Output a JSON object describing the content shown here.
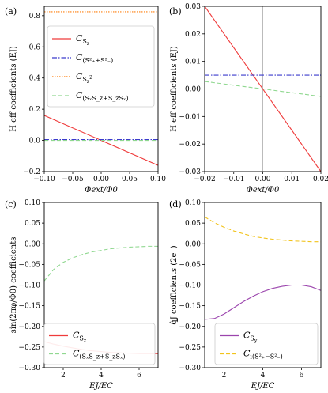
{
  "chart_data": [
    {
      "panel_label": "(a)",
      "type": "line",
      "xlabel": "Φext/Φ0",
      "ylabel": "H eff coefficients (EJ)",
      "xlim": [
        -0.1,
        0.1
      ],
      "ylim": [
        -0.2,
        0.86
      ],
      "xticks": [
        "−0.10",
        "−0.05",
        "0.00",
        "0.05",
        "0.10"
      ],
      "xtick_values": [
        -0.1,
        -0.05,
        0.0,
        0.05,
        0.1
      ],
      "yticks": [
        "−0.2",
        "0.0",
        "0.2",
        "0.4",
        "0.6",
        "0.8"
      ],
      "ytick_values": [
        -0.2,
        0.0,
        0.2,
        0.4,
        0.6,
        0.8
      ],
      "legend": "upper-left",
      "series": [
        {
          "name": "C_{Sz}",
          "color": "#ef3b3b",
          "dash": "solid",
          "x": [
            -0.1,
            0.1
          ],
          "y": [
            0.16,
            -0.16
          ]
        },
        {
          "name": "C_{(S+²+S−²)}",
          "color": "#3b3bcc",
          "dash": "dashdot",
          "x": [
            -0.1,
            0.1
          ],
          "y": [
            0.005,
            0.005
          ]
        },
        {
          "name": "C_{Sz²}",
          "color": "#ff7f0e",
          "dash": "dotted",
          "x": [
            -0.1,
            0.1
          ],
          "y": [
            0.825,
            0.825
          ]
        },
        {
          "name": "C_{(SxSz+SzSx)}",
          "color": "#90d890",
          "dash": "dashed",
          "x": [
            -0.1,
            0.1
          ],
          "y": [
            0.0,
            0.0
          ]
        }
      ]
    },
    {
      "panel_label": "(b)",
      "type": "line",
      "xlabel": "Φext/Φ0",
      "ylabel": "H eff coefficients (EJ)",
      "xlim": [
        -0.02,
        0.02
      ],
      "ylim": [
        -0.03,
        0.03
      ],
      "xticks": [
        "−0.02",
        "−0.01",
        "0.00",
        "0.01",
        "0.02"
      ],
      "xtick_values": [
        -0.02,
        -0.01,
        0.0,
        0.01,
        0.02
      ],
      "yticks": [
        "−0.03",
        "−0.02",
        "−0.01",
        "0.00",
        "0.01",
        "0.02",
        "0.03"
      ],
      "ytick_values": [
        -0.03,
        -0.02,
        -0.01,
        0.0,
        0.01,
        0.02,
        0.03
      ],
      "series": [
        {
          "name": "C_{Sz}",
          "color": "#ef3b3b",
          "dash": "solid",
          "x": [
            -0.02,
            0.02
          ],
          "y": [
            0.03,
            -0.03
          ]
        },
        {
          "name": "C_{(S+²+S−²)}",
          "color": "#3b3bcc",
          "dash": "dashdot",
          "x": [
            -0.02,
            0.02
          ],
          "y": [
            0.005,
            0.005
          ]
        },
        {
          "name": "C_{(SxSz+SzSx)}",
          "color": "#90d890",
          "dash": "dashed",
          "x": [
            -0.02,
            0.02
          ],
          "y": [
            0.0027,
            -0.0027
          ]
        }
      ]
    },
    {
      "panel_label": "(c)",
      "type": "line",
      "xlabel": "EJ/EC",
      "ylabel": "sin(2πφ/Φ0) coefficients",
      "xlim": [
        1,
        7
      ],
      "ylim": [
        -0.3,
        0.1
      ],
      "xticks": [
        "2",
        "4",
        "6"
      ],
      "xtick_values": [
        2,
        4,
        6
      ],
      "yticks": [
        "−0.30",
        "−0.25",
        "−0.20",
        "−0.15",
        "−0.10",
        "−0.05",
        "0.00",
        "0.05",
        "0.10"
      ],
      "ytick_values": [
        -0.3,
        -0.25,
        -0.2,
        -0.15,
        -0.1,
        -0.05,
        0.0,
        0.05,
        0.1
      ],
      "legend": "lower-right",
      "series": [
        {
          "name": "C_{Sz}",
          "color": "#ef3b3b",
          "dash": "solid",
          "x": [
            1,
            1.5,
            2,
            2.5,
            3,
            3.5,
            4,
            4.5,
            5,
            5.5,
            6,
            6.5,
            7
          ],
          "y": [
            -0.237,
            -0.243,
            -0.248,
            -0.252,
            -0.256,
            -0.259,
            -0.261,
            -0.263,
            -0.264,
            -0.265,
            -0.266,
            -0.266,
            -0.266
          ]
        },
        {
          "name": "C_{(SxSz+SzSx)}",
          "color": "#90d890",
          "dash": "dashed",
          "x": [
            1,
            1.5,
            2,
            2.5,
            3,
            3.5,
            4,
            4.5,
            5,
            5.5,
            6,
            6.5,
            7
          ],
          "y": [
            -0.09,
            -0.062,
            -0.045,
            -0.034,
            -0.026,
            -0.02,
            -0.016,
            -0.012,
            -0.01,
            -0.008,
            -0.007,
            -0.006,
            -0.006
          ]
        }
      ]
    },
    {
      "panel_label": "(d)",
      "type": "line",
      "xlabel": "EJ/EC",
      "ylabel": "q̂J coefficients (2e⁻)",
      "xlim": [
        1,
        7
      ],
      "ylim": [
        -0.3,
        0.1
      ],
      "xticks": [
        "2",
        "4",
        "6"
      ],
      "xtick_values": [
        2,
        4,
        6
      ],
      "yticks": [
        "−0.30",
        "−0.25",
        "−0.20",
        "−0.15",
        "−0.10",
        "−0.05",
        "0.00",
        "0.05",
        "0.10"
      ],
      "ytick_values": [
        -0.3,
        -0.25,
        -0.2,
        -0.15,
        -0.1,
        -0.05,
        0.0,
        0.05,
        0.1
      ],
      "legend": "lower-right",
      "series": [
        {
          "name": "C_{Sy}",
          "color": "#9b44ad",
          "dash": "solid",
          "x": [
            1,
            1.5,
            2,
            2.5,
            3,
            3.5,
            4,
            4.5,
            5,
            5.5,
            6,
            6.5,
            7
          ],
          "y": [
            -0.183,
            -0.181,
            -0.17,
            -0.155,
            -0.14,
            -0.127,
            -0.116,
            -0.108,
            -0.103,
            -0.1,
            -0.1,
            -0.104,
            -0.113
          ]
        },
        {
          "name": "C_{i(S+²−S−²)}",
          "color": "#f2c31b",
          "dash": "dashed",
          "x": [
            1,
            1.5,
            2,
            2.5,
            3,
            3.5,
            4,
            4.5,
            5,
            5.5,
            6,
            6.5,
            7
          ],
          "y": [
            0.065,
            0.051,
            0.04,
            0.031,
            0.024,
            0.018,
            0.014,
            0.011,
            0.009,
            0.007,
            0.006,
            0.005,
            0.005
          ]
        }
      ]
    }
  ]
}
